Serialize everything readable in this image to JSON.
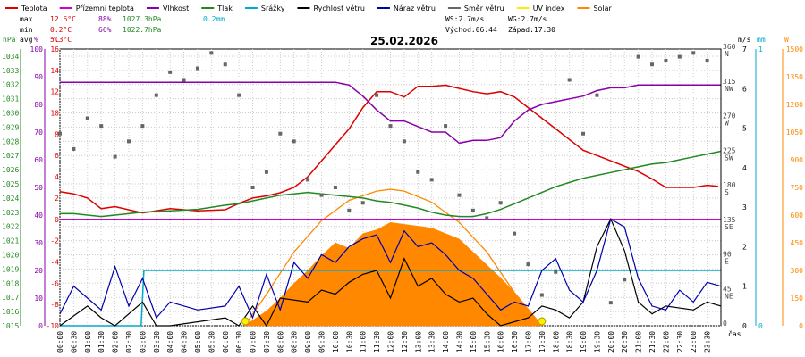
{
  "date": "25.02.2026",
  "legend": [
    {
      "label": "Teplota",
      "color": "#dd0000"
    },
    {
      "label": "Přízemní teplota",
      "color": "#cc00cc"
    },
    {
      "label": "Vlhkost",
      "color": "#8800aa"
    },
    {
      "label": "Tlak",
      "color": "#228822"
    },
    {
      "label": "Srážky",
      "color": "#00aacc"
    },
    {
      "label": "Rychlost větru",
      "color": "#000000"
    },
    {
      "label": "Náraz větru",
      "color": "#0000aa"
    },
    {
      "label": "Směr větru",
      "color": "#666666"
    },
    {
      "label": "UV index",
      "color": "#ffee00"
    },
    {
      "label": "Solar",
      "color": "#ff8800"
    }
  ],
  "stats": {
    "max_label": "max",
    "max_temp": "12.6°C",
    "max_hum": "88%",
    "max_press": "1027.3hPa",
    "max_rain": "0.2mm",
    "min_label": "min",
    "min_temp": "0.2°C",
    "min_hum": "66%",
    "min_press": "1022.7hPa",
    "avg_label": "avg",
    "avg_temp": "5.3°C",
    "ws": "WS:2.7m/s",
    "wg": "WG:2.7m/s",
    "sunrise": "Východ:06:44",
    "sunset": "Západ:17:30"
  },
  "axis_units": {
    "hpa": "hPa",
    "pct": "%",
    "c": "°C",
    "ms": "m/s",
    "mm": "mm",
    "w": "W",
    "time": "čas"
  },
  "pressure_ticks": [
    "1034",
    "1033",
    "1032",
    "1031",
    "1030",
    "1029",
    "1028",
    "1027",
    "1026",
    "1025",
    "1024",
    "1023",
    "1022",
    "1021",
    "1020",
    "1019",
    "1018",
    "1017",
    "1016",
    "1015"
  ],
  "humidity_ticks": [
    "100",
    "90",
    "80",
    "70",
    "60",
    "50",
    "40",
    "30",
    "20",
    "10",
    "0"
  ],
  "temp_ticks": [
    "16",
    "14",
    "12",
    "10",
    "8",
    "6",
    "4",
    "2",
    "0",
    "-2",
    "-4",
    "-6",
    "-8",
    "-10"
  ],
  "dir_ticks": [
    "360",
    "315",
    "270",
    "225",
    "180",
    "135",
    "90",
    "45",
    "0"
  ],
  "dir_labels": [
    "N",
    "NW",
    "W",
    "SW",
    "S",
    "SE",
    "E",
    "NE",
    ""
  ],
  "wind_ticks": [
    "7",
    "6",
    "5",
    "4",
    "3",
    "2",
    "1",
    "0"
  ],
  "rain_ticks": [
    "1",
    "0"
  ],
  "solar_ticks": [
    "1500",
    "1350",
    "1200",
    "1050",
    "900",
    "750",
    "600",
    "450",
    "300",
    "150",
    "0"
  ],
  "time_labels": [
    "00:00",
    "00:30",
    "01:00",
    "01:30",
    "02:00",
    "02:30",
    "03:00",
    "03:30",
    "04:00",
    "04:30",
    "05:00",
    "05:30",
    "06:00",
    "06:30",
    "07:00",
    "07:30",
    "08:00",
    "08:30",
    "09:00",
    "09:30",
    "10:00",
    "10:30",
    "11:00",
    "11:30",
    "12:00",
    "12:30",
    "13:00",
    "13:30",
    "14:00",
    "14:30",
    "15:00",
    "15:30",
    "16:00",
    "16:30",
    "17:00",
    "17:30",
    "18:00",
    "18:30",
    "19:00",
    "19:30",
    "20:00",
    "20:30",
    "21:00",
    "21:30",
    "22:00",
    "22:30",
    "23:00",
    "23:30"
  ],
  "chart_data": {
    "type": "line",
    "title": "25.02.2026",
    "xlabel": "čas",
    "x_range": [
      0,
      24
    ],
    "series": [
      {
        "name": "Teplota",
        "unit": "°C",
        "axis": "temp",
        "color": "#dd0000",
        "x": [
          0,
          0.5,
          1,
          1.5,
          2,
          3,
          4,
          5,
          6,
          6.5,
          7,
          7.5,
          8,
          8.5,
          9,
          9.5,
          10,
          10.5,
          11,
          11.5,
          12,
          12.5,
          13,
          13.5,
          14,
          14.5,
          15,
          15.5,
          16,
          16.5,
          17,
          17.5,
          18,
          18.5,
          19,
          19.5,
          20,
          20.5,
          21,
          21.5,
          22,
          22.5,
          23,
          23.5,
          23.9
        ],
        "values": [
          2.6,
          2.4,
          2.0,
          1.0,
          1.2,
          0.6,
          1.0,
          0.8,
          0.9,
          1.5,
          2.0,
          2.2,
          2.5,
          3.0,
          4.0,
          5.5,
          7.0,
          8.5,
          10.5,
          12.0,
          12.0,
          11.5,
          12.5,
          12.5,
          12.6,
          12.3,
          12.0,
          11.8,
          12.0,
          11.5,
          10.5,
          9.5,
          8.5,
          7.5,
          6.5,
          6.0,
          5.5,
          5.0,
          4.5,
          3.8,
          3.0,
          3.0,
          3.0,
          3.2,
          3.1
        ]
      },
      {
        "name": "Přízemní teplota",
        "unit": "°C",
        "axis": "temp",
        "color": "#cc00cc",
        "x": [
          0,
          24
        ],
        "values": [
          0,
          0
        ]
      },
      {
        "name": "Vlhkost",
        "unit": "%",
        "axis": "hum",
        "color": "#8800aa",
        "x": [
          0,
          1,
          2,
          3,
          4,
          5,
          6,
          7,
          8,
          9,
          10,
          10.5,
          11,
          11.5,
          12,
          12.5,
          13,
          13.5,
          14,
          14.5,
          15,
          15.5,
          16,
          16.5,
          17,
          17.5,
          18,
          18.5,
          19,
          19.5,
          20,
          20.5,
          21,
          21.5,
          22,
          22.5,
          23,
          23.5,
          24
        ],
        "values": [
          88,
          88,
          88,
          88,
          88,
          88,
          88,
          88,
          88,
          88,
          88,
          87,
          83,
          78,
          74,
          74,
          72,
          70,
          70,
          66,
          67,
          67,
          68,
          74,
          78,
          80,
          81,
          82,
          83,
          85,
          86,
          86,
          87,
          87,
          87,
          87,
          87,
          87,
          87
        ]
      },
      {
        "name": "Tlak",
        "unit": "hPa",
        "axis": "press",
        "color": "#228822",
        "x": [
          0,
          0.5,
          1,
          1.5,
          2,
          3,
          4,
          5,
          6,
          6.5,
          7,
          7.5,
          8,
          8.5,
          9,
          9.5,
          10,
          10.5,
          11,
          11.5,
          12,
          12.5,
          13,
          13.5,
          14,
          14.5,
          15,
          15.5,
          16,
          16.5,
          17,
          17.5,
          18,
          18.5,
          19,
          19.5,
          20,
          20.5,
          21,
          21.5,
          22,
          22.5,
          23,
          23.5,
          24
        ],
        "values": [
          1022.9,
          1022.9,
          1022.8,
          1022.7,
          1022.8,
          1023.0,
          1023.1,
          1023.2,
          1023.5,
          1023.6,
          1023.8,
          1024.0,
          1024.2,
          1024.3,
          1024.4,
          1024.3,
          1024.2,
          1024.1,
          1024.0,
          1023.8,
          1023.7,
          1023.5,
          1023.3,
          1023.0,
          1022.8,
          1022.7,
          1022.7,
          1022.9,
          1023.2,
          1023.6,
          1024.0,
          1024.4,
          1024.8,
          1025.1,
          1025.4,
          1025.6,
          1025.8,
          1026.0,
          1026.2,
          1026.4,
          1026.5,
          1026.7,
          1026.9,
          1027.1,
          1027.3
        ]
      },
      {
        "name": "Srážky",
        "unit": "mm",
        "axis": "rain",
        "color": "#00aacc",
        "x": [
          0,
          2.95,
          3.05,
          24
        ],
        "values": [
          0,
          0,
          0.2,
          0.2
        ]
      },
      {
        "name": "Rychlost větru",
        "unit": "m/s",
        "axis": "wind",
        "color": "#000000",
        "x": [
          0,
          1,
          1.5,
          2,
          3,
          3.5,
          4,
          6,
          6.5,
          7,
          7.5,
          8,
          9,
          9.5,
          10,
          10.5,
          11,
          11.5,
          12,
          12.5,
          13,
          13.5,
          14,
          14.5,
          15,
          15.5,
          16,
          17,
          17.5,
          18,
          18.5,
          19,
          19.5,
          20,
          20.5,
          21,
          21.5,
          22,
          23,
          23.5,
          24
        ],
        "values": [
          0,
          0.5,
          0.2,
          0,
          0.6,
          0,
          0,
          0.2,
          0,
          0.5,
          0,
          0.7,
          0.6,
          0.9,
          0.8,
          1.1,
          1.3,
          1.4,
          0.7,
          1.7,
          1.0,
          1.2,
          0.8,
          0.6,
          0.7,
          0.3,
          0,
          0.2,
          0.5,
          0.4,
          0.2,
          0.6,
          2.0,
          2.7,
          1.9,
          0.6,
          0.3,
          0.5,
          0.4,
          0.6,
          0.5
        ]
      },
      {
        "name": "Náraz větru",
        "unit": "m/s",
        "axis": "wind",
        "color": "#0000aa",
        "x": [
          0,
          0.5,
          1,
          1.5,
          2,
          2.5,
          3,
          3.5,
          4,
          5,
          6,
          6.5,
          7,
          7.5,
          8,
          8.5,
          9,
          9.5,
          10,
          10.5,
          11,
          11.5,
          12,
          12.5,
          13,
          13.5,
          14,
          14.5,
          15,
          15.5,
          16,
          16.5,
          17,
          17.5,
          18,
          18.5,
          19,
          19.5,
          20,
          20.5,
          21,
          21.5,
          22,
          22.5,
          23,
          23.5,
          24
        ],
        "values": [
          0.3,
          1.0,
          0.7,
          0.4,
          1.5,
          0.5,
          1.2,
          0.2,
          0.6,
          0.4,
          0.5,
          1.0,
          0.2,
          1.3,
          0.4,
          1.6,
          1.2,
          1.8,
          1.6,
          2.0,
          2.2,
          2.3,
          1.6,
          2.4,
          2.0,
          2.1,
          1.8,
          1.4,
          1.2,
          0.8,
          0.4,
          0.6,
          0.5,
          1.4,
          1.7,
          0.9,
          0.6,
          1.4,
          2.7,
          2.5,
          1.2,
          0.5,
          0.4,
          0.9,
          0.6,
          1.1,
          1.0
        ]
      },
      {
        "name": "Směr větru",
        "unit": "°",
        "axis": "dir",
        "color": "#666666",
        "x": [
          0,
          0.5,
          1,
          1.5,
          2,
          2.5,
          3,
          3.5,
          4,
          4.5,
          5,
          5.5,
          6,
          6.5,
          7,
          7.5,
          8,
          8.5,
          9,
          9.5,
          10,
          10.5,
          11,
          11.5,
          12,
          12.5,
          13,
          13.5,
          14,
          14.5,
          15,
          15.5,
          16,
          16.5,
          17,
          17.5,
          18,
          18.5,
          19,
          19.5,
          20,
          20.5,
          21,
          21.5,
          22,
          22.5,
          23,
          23.5
        ],
        "values": [
          250,
          230,
          270,
          260,
          220,
          240,
          260,
          300,
          330,
          320,
          335,
          355,
          340,
          300,
          180,
          200,
          250,
          240,
          190,
          170,
          180,
          150,
          160,
          300,
          260,
          240,
          200,
          190,
          260,
          170,
          150,
          140,
          160,
          120,
          80,
          40,
          70,
          320,
          250,
          300,
          30,
          60,
          350,
          340,
          345,
          350,
          355,
          345
        ]
      },
      {
        "name": "UV index",
        "unit": "",
        "axis": "uv",
        "color": "#ffee00",
        "x": [
          0,
          24
        ],
        "values": [
          0,
          0
        ]
      },
      {
        "name": "Solar",
        "unit": "W/m²",
        "axis": "solar",
        "color": "#ff8800",
        "x": [
          6.7,
          7.5,
          8,
          8.5,
          9,
          9.5,
          10,
          10.5,
          11,
          11.5,
          12,
          12.5,
          13,
          13.5,
          14,
          14.5,
          15,
          15.5,
          16,
          16.5,
          17,
          17.5
        ],
        "values": [
          0,
          80,
          150,
          230,
          300,
          380,
          450,
          420,
          500,
          520,
          560,
          550,
          540,
          530,
          500,
          470,
          400,
          330,
          260,
          180,
          90,
          0
        ]
      },
      {
        "name": "Solar max",
        "unit": "W/m²",
        "axis": "solar",
        "color": "#ff8800",
        "x": [
          6.7,
          7.5,
          8.5,
          9.5,
          10.5,
          11.5,
          12.0,
          12.5,
          13.5,
          14.5,
          15.5,
          16.5,
          17.5
        ],
        "values": [
          0,
          170,
          400,
          570,
          680,
          730,
          740,
          730,
          670,
          560,
          400,
          180,
          0
        ]
      }
    ],
    "axes": {
      "press": {
        "label": "hPa",
        "range": [
          1015,
          1034.5
        ]
      },
      "hum": {
        "label": "%",
        "range": [
          0,
          100
        ]
      },
      "temp": {
        "label": "°C",
        "range": [
          -10,
          16
        ]
      },
      "dir": {
        "label": "°",
        "range": [
          0,
          360
        ]
      },
      "wind": {
        "label": "m/s",
        "range": [
          0,
          7
        ]
      },
      "rain": {
        "label": "mm",
        "range": [
          0,
          1
        ]
      },
      "solar": {
        "label": "W",
        "range": [
          0,
          1500
        ]
      }
    },
    "markers": [
      {
        "type": "sunrise",
        "time": 6.73
      },
      {
        "type": "sunset",
        "time": 17.5
      }
    ]
  }
}
